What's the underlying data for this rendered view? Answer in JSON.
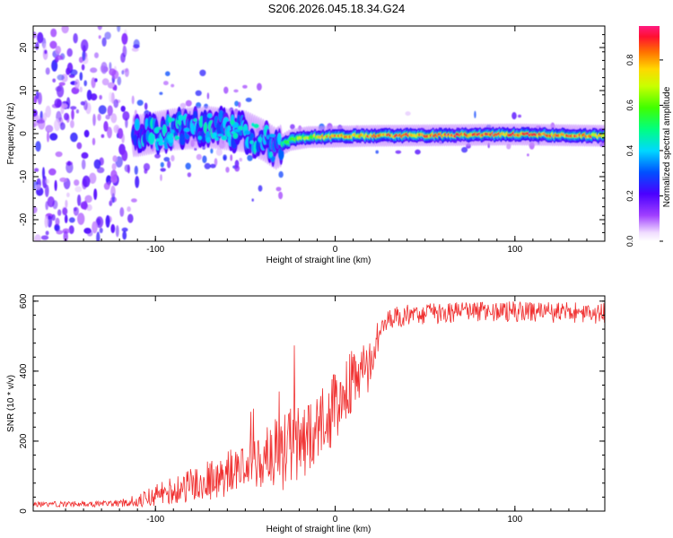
{
  "title": "S206.2026.045.18.34.G24",
  "chart_data": [
    {
      "type": "heatmap",
      "xlabel": "Height of straight line (km)",
      "ylabel": "Frequency (Hz)",
      "xlim": [
        -168,
        150
      ],
      "ylim": [
        -25,
        25
      ],
      "xticks": [
        -100,
        0,
        100
      ],
      "xtick_labels": [
        "-100",
        "0",
        "100"
      ],
      "yticks": [
        -20,
        -10,
        0,
        10,
        20
      ],
      "ytick_labels": [
        "-20",
        "-10",
        "0",
        "10",
        "20"
      ],
      "colorbar": {
        "label": "Normalized spectral amplitude",
        "range": [
          0,
          0.95
        ],
        "ticks": [
          0,
          0.2,
          0.4,
          0.6,
          0.8
        ],
        "tick_labels": [
          "0.0",
          "0.2",
          "0.4",
          "0.6",
          "0.8"
        ]
      },
      "ridge": {
        "x": [
          -110,
          -90,
          -70,
          -50,
          -40,
          -33,
          -25,
          -15,
          0,
          20,
          50,
          100,
          150
        ],
        "freq": [
          -0.5,
          1.0,
          1.5,
          0.5,
          -1.5,
          -3.5,
          -1.5,
          -0.8,
          -0.7,
          -0.5,
          -0.4,
          -0.2,
          -0.5
        ],
        "amplitude": [
          0.3,
          0.4,
          0.45,
          0.4,
          0.4,
          0.35,
          0.6,
          0.7,
          0.8,
          0.85,
          0.9,
          0.92,
          0.8
        ]
      }
    },
    {
      "type": "line",
      "xlabel": "Height of straight line (km)",
      "ylabel": "SNR (10 * v/v)",
      "xlim": [
        -168,
        150
      ],
      "ylim": [
        0,
        615
      ],
      "xticks": [
        -100,
        0,
        100
      ],
      "xtick_labels": [
        "-100",
        "0",
        "100"
      ],
      "yticks": [
        0,
        200,
        400,
        600
      ],
      "ytick_labels": [
        "0",
        "200",
        "400",
        "600"
      ],
      "series": [
        {
          "name": "SNR",
          "color": "#f03030",
          "x": [
            -168,
            -140,
            -120,
            -110,
            -100,
            -90,
            -80,
            -70,
            -60,
            -50,
            -40,
            -30,
            -20,
            -10,
            0,
            10,
            20,
            25,
            30,
            40,
            60,
            80,
            100,
            120,
            150
          ],
          "y": [
            20,
            20,
            22,
            30,
            45,
            60,
            75,
            90,
            110,
            130,
            150,
            175,
            200,
            230,
            300,
            380,
            440,
            520,
            550,
            560,
            565,
            570,
            570,
            568,
            565
          ],
          "noise": [
            8,
            8,
            10,
            18,
            30,
            40,
            50,
            60,
            70,
            80,
            90,
            100,
            110,
            110,
            100,
            90,
            60,
            40,
            30,
            30,
            30,
            30,
            30,
            30,
            30
          ]
        }
      ]
    }
  ]
}
